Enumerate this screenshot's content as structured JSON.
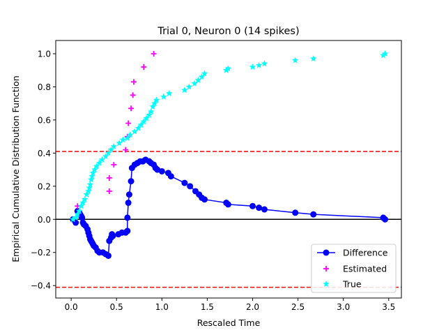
{
  "chart_data": {
    "type": "scatter",
    "title": "Trial 0, Neuron 0 (14 spikes)",
    "xlabel": "Rescaled Time",
    "ylabel": "Empirical Cumulative Distribution Function",
    "xlim": [
      -0.17,
      3.64
    ],
    "ylim": [
      -0.475,
      1.08
    ],
    "xticks": [
      "0.0",
      "0.5",
      "1.0",
      "1.5",
      "2.0",
      "2.5",
      "3.0",
      "3.5"
    ],
    "xtick_values": [
      0,
      0.5,
      1.0,
      1.5,
      2.0,
      2.5,
      3.0,
      3.5
    ],
    "yticks": [
      "−0.4",
      "−0.2",
      "0.0",
      "0.2",
      "0.4",
      "0.6",
      "0.8",
      "1.0"
    ],
    "ytick_values": [
      -0.4,
      -0.2,
      0.0,
      0.2,
      0.4,
      0.6,
      0.8,
      1.0
    ],
    "grid": false,
    "legend_position": "bottom-right",
    "reference_lines": [
      {
        "y": 0.41,
        "color": "#ff0000",
        "style": "dashed"
      },
      {
        "y": -0.41,
        "color": "#ff0000",
        "style": "dashed"
      },
      {
        "y": 0.0,
        "color": "#000000",
        "style": "solid"
      }
    ],
    "series": [
      {
        "name": "Difference",
        "color": "#0000ff",
        "marker": "circle",
        "line": true,
        "points": [
          [
            0.02,
            0.0
          ],
          [
            0.05,
            -0.02
          ],
          [
            0.07,
            0.05
          ],
          [
            0.09,
            0.04
          ],
          [
            0.1,
            0.03
          ],
          [
            0.11,
            0.02
          ],
          [
            0.12,
            0.01
          ],
          [
            0.13,
            -0.02
          ],
          [
            0.14,
            -0.03
          ],
          [
            0.16,
            -0.04
          ],
          [
            0.18,
            -0.06
          ],
          [
            0.19,
            -0.08
          ],
          [
            0.2,
            -0.1
          ],
          [
            0.21,
            -0.12
          ],
          [
            0.22,
            -0.13
          ],
          [
            0.23,
            -0.14
          ],
          [
            0.24,
            -0.15
          ],
          [
            0.25,
            -0.16
          ],
          [
            0.27,
            -0.17
          ],
          [
            0.29,
            -0.19
          ],
          [
            0.31,
            -0.2
          ],
          [
            0.35,
            -0.2
          ],
          [
            0.38,
            -0.21
          ],
          [
            0.41,
            -0.22
          ],
          [
            0.42,
            -0.13
          ],
          [
            0.44,
            -0.11
          ],
          [
            0.45,
            -0.09
          ],
          [
            0.46,
            -0.1
          ],
          [
            0.52,
            -0.09
          ],
          [
            0.56,
            -0.08
          ],
          [
            0.6,
            -0.08
          ],
          [
            0.62,
            -0.07
          ],
          [
            0.62,
            0.01
          ],
          [
            0.63,
            0.1
          ],
          [
            0.64,
            0.15
          ],
          [
            0.66,
            0.23
          ],
          [
            0.67,
            0.31
          ],
          [
            0.7,
            0.33
          ],
          [
            0.73,
            0.34
          ],
          [
            0.76,
            0.35
          ],
          [
            0.79,
            0.35
          ],
          [
            0.82,
            0.36
          ],
          [
            0.86,
            0.35
          ],
          [
            0.88,
            0.34
          ],
          [
            0.91,
            0.33
          ],
          [
            0.93,
            0.31
          ],
          [
            0.95,
            0.3
          ],
          [
            1.0,
            0.29
          ],
          [
            1.07,
            0.28
          ],
          [
            1.1,
            0.26
          ],
          [
            1.25,
            0.22
          ],
          [
            1.31,
            0.2
          ],
          [
            1.37,
            0.17
          ],
          [
            1.41,
            0.15
          ],
          [
            1.44,
            0.13
          ],
          [
            1.47,
            0.12
          ],
          [
            1.71,
            0.1
          ],
          [
            1.73,
            0.09
          ],
          [
            2.0,
            0.08
          ],
          [
            2.07,
            0.07
          ],
          [
            2.13,
            0.06
          ],
          [
            2.47,
            0.04
          ],
          [
            2.67,
            0.03
          ],
          [
            3.44,
            0.01
          ],
          [
            3.46,
            0.0
          ]
        ]
      },
      {
        "name": "Estimated",
        "color": "#ff00ff",
        "marker": "plus",
        "line": false,
        "points": [
          [
            0.07,
            0.08
          ],
          [
            0.42,
            0.17
          ],
          [
            0.42,
            0.25
          ],
          [
            0.47,
            0.33
          ],
          [
            0.6,
            0.42
          ],
          [
            0.62,
            0.5
          ],
          [
            0.63,
            0.58
          ],
          [
            0.66,
            0.67
          ],
          [
            0.68,
            0.75
          ],
          [
            0.69,
            0.83
          ],
          [
            0.8,
            0.92
          ],
          [
            0.91,
            1.0
          ]
        ]
      },
      {
        "name": "True",
        "color": "#00ffff",
        "marker": "star",
        "line": false,
        "points": [
          [
            0.02,
            0.0
          ],
          [
            0.05,
            0.01
          ],
          [
            0.07,
            0.03
          ],
          [
            0.09,
            0.05
          ],
          [
            0.11,
            0.08
          ],
          [
            0.13,
            0.1
          ],
          [
            0.15,
            0.12
          ],
          [
            0.17,
            0.15
          ],
          [
            0.19,
            0.17
          ],
          [
            0.2,
            0.19
          ],
          [
            0.21,
            0.21
          ],
          [
            0.22,
            0.24
          ],
          [
            0.23,
            0.26
          ],
          [
            0.24,
            0.28
          ],
          [
            0.26,
            0.3
          ],
          [
            0.28,
            0.32
          ],
          [
            0.31,
            0.34
          ],
          [
            0.34,
            0.36
          ],
          [
            0.38,
            0.38
          ],
          [
            0.41,
            0.4
          ],
          [
            0.44,
            0.42
          ],
          [
            0.47,
            0.44
          ],
          [
            0.53,
            0.46
          ],
          [
            0.57,
            0.48
          ],
          [
            0.62,
            0.49
          ],
          [
            0.65,
            0.51
          ],
          [
            0.7,
            0.53
          ],
          [
            0.74,
            0.55
          ],
          [
            0.77,
            0.57
          ],
          [
            0.8,
            0.59
          ],
          [
            0.83,
            0.61
          ],
          [
            0.86,
            0.63
          ],
          [
            0.88,
            0.65
          ],
          [
            0.9,
            0.68
          ],
          [
            0.92,
            0.7
          ],
          [
            0.94,
            0.72
          ],
          [
            1.02,
            0.74
          ],
          [
            1.08,
            0.76
          ],
          [
            1.25,
            0.78
          ],
          [
            1.3,
            0.8
          ],
          [
            1.36,
            0.82
          ],
          [
            1.4,
            0.84
          ],
          [
            1.44,
            0.86
          ],
          [
            1.47,
            0.88
          ],
          [
            1.71,
            0.9
          ],
          [
            1.73,
            0.91
          ],
          [
            2.0,
            0.92
          ],
          [
            2.07,
            0.93
          ],
          [
            2.13,
            0.94
          ],
          [
            2.47,
            0.96
          ],
          [
            2.67,
            0.97
          ],
          [
            3.44,
            0.99
          ],
          [
            3.46,
            1.0
          ]
        ]
      }
    ]
  }
}
